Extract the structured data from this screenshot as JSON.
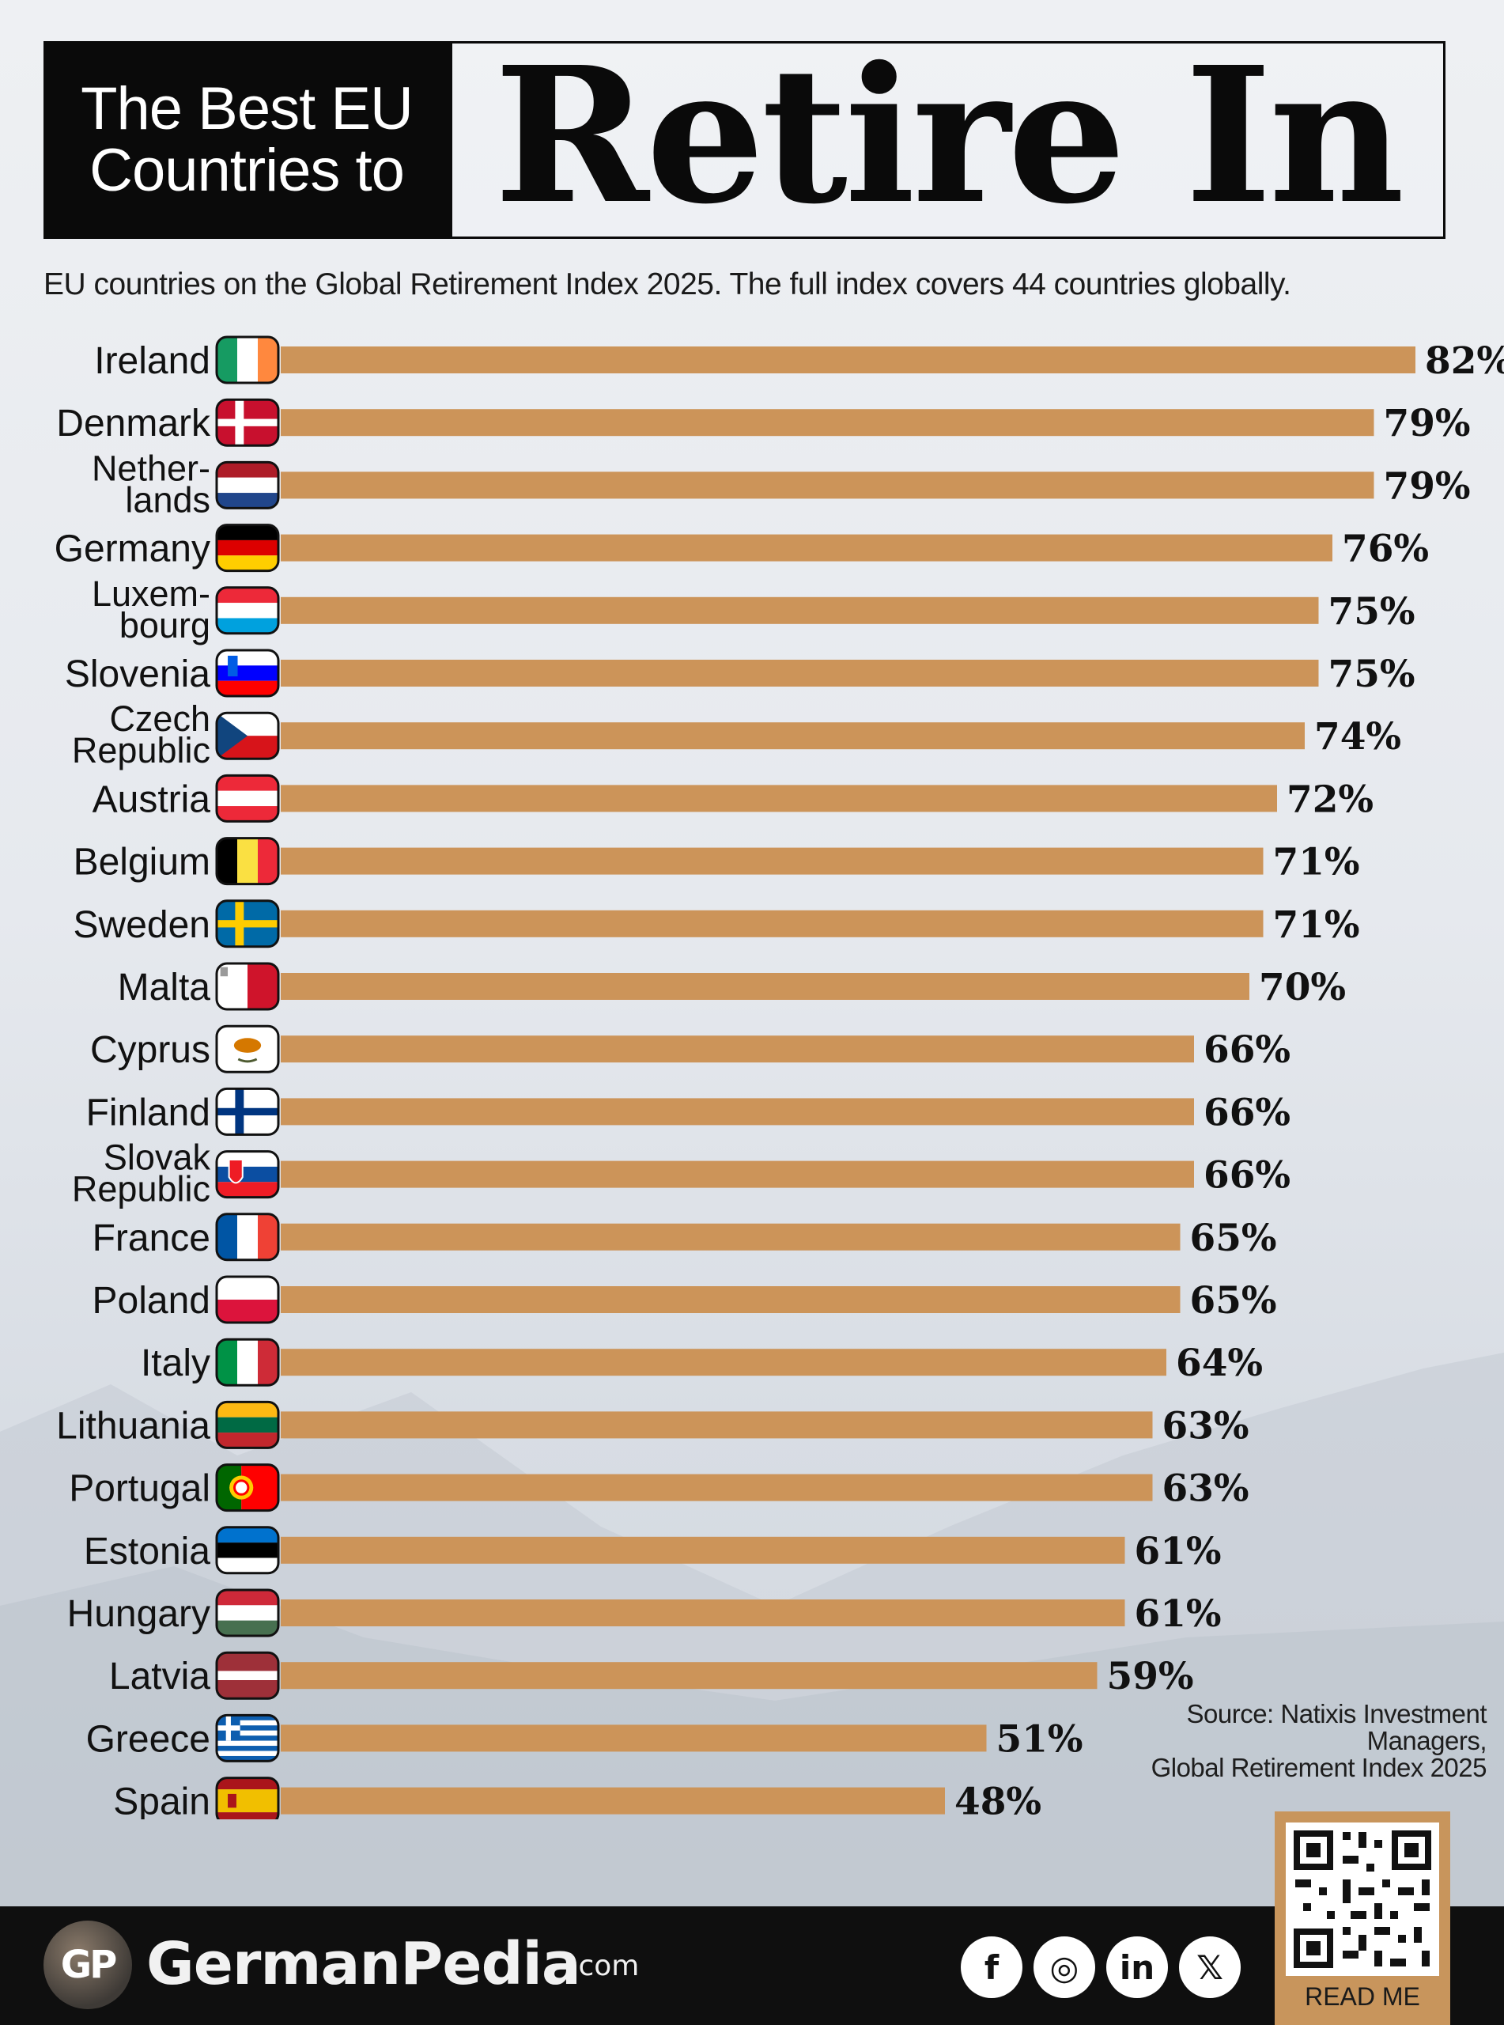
{
  "header": {
    "title_small_line1": "The Best EU",
    "title_small_line2": "Countries to",
    "title_big": "Retire In"
  },
  "subtitle": "EU countries on the Global Retirement Index 2025.  The full index covers 44 countries globally.",
  "source": {
    "line1": "Source: Natixis Investment",
    "line2": "Managers,",
    "line3": "Global Retirement Index 2025"
  },
  "footer": {
    "logo_initials": "GP",
    "brand": "GermanPedia",
    "brand_tld": ".com",
    "social": [
      {
        "name": "facebook-icon",
        "glyph": "f"
      },
      {
        "name": "instagram-icon",
        "glyph": "◎"
      },
      {
        "name": "linkedin-icon",
        "glyph": "in"
      },
      {
        "name": "x-icon",
        "glyph": "𝕏"
      }
    ],
    "qr_label": "READ ME"
  },
  "colors": {
    "bar": "#cc9459",
    "text": "#111111",
    "footer_bg": "#0f0f0f"
  },
  "chart_data": {
    "type": "bar",
    "orientation": "horizontal",
    "title": "The Best EU Countries to Retire In",
    "value_suffix": "%",
    "xlim": [
      0,
      82
    ],
    "categories": [
      {
        "lines": [
          "Ireland"
        ],
        "flag": "ireland"
      },
      {
        "lines": [
          "Denmark"
        ],
        "flag": "denmark"
      },
      {
        "lines": [
          "Nether-",
          "lands"
        ],
        "flag": "netherlands"
      },
      {
        "lines": [
          "Germany"
        ],
        "flag": "germany"
      },
      {
        "lines": [
          "Luxem-",
          "bourg"
        ],
        "flag": "luxembourg"
      },
      {
        "lines": [
          "Slovenia"
        ],
        "flag": "slovenia"
      },
      {
        "lines": [
          "Czech",
          "Republic"
        ],
        "flag": "czech"
      },
      {
        "lines": [
          "Austria"
        ],
        "flag": "austria"
      },
      {
        "lines": [
          "Belgium"
        ],
        "flag": "belgium"
      },
      {
        "lines": [
          "Sweden"
        ],
        "flag": "sweden"
      },
      {
        "lines": [
          "Malta"
        ],
        "flag": "malta"
      },
      {
        "lines": [
          "Cyprus"
        ],
        "flag": "cyprus"
      },
      {
        "lines": [
          "Finland"
        ],
        "flag": "finland"
      },
      {
        "lines": [
          "Slovak",
          "Republic"
        ],
        "flag": "slovakia"
      },
      {
        "lines": [
          "France"
        ],
        "flag": "france"
      },
      {
        "lines": [
          "Poland"
        ],
        "flag": "poland"
      },
      {
        "lines": [
          "Italy"
        ],
        "flag": "italy"
      },
      {
        "lines": [
          "Lithuania"
        ],
        "flag": "lithuania"
      },
      {
        "lines": [
          "Portugal"
        ],
        "flag": "portugal"
      },
      {
        "lines": [
          "Estonia"
        ],
        "flag": "estonia"
      },
      {
        "lines": [
          "Hungary"
        ],
        "flag": "hungary"
      },
      {
        "lines": [
          "Latvia"
        ],
        "flag": "latvia"
      },
      {
        "lines": [
          "Greece"
        ],
        "flag": "greece"
      },
      {
        "lines": [
          "Spain"
        ],
        "flag": "spain"
      }
    ],
    "values": [
      82,
      79,
      79,
      76,
      75,
      75,
      74,
      72,
      71,
      71,
      70,
      66,
      66,
      66,
      65,
      65,
      64,
      63,
      63,
      61,
      61,
      59,
      51,
      48
    ]
  }
}
